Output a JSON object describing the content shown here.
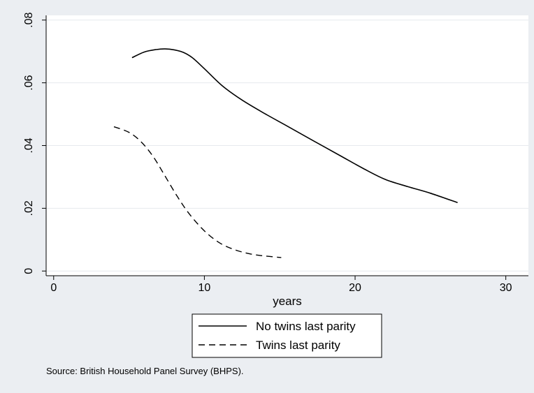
{
  "chart_data": {
    "type": "line",
    "title": "",
    "xlabel": "years",
    "ylabel": "",
    "xlim": [
      -0.5,
      31.5
    ],
    "ylim": [
      -0.0015,
      0.0815
    ],
    "x_ticks": [
      0,
      10,
      20,
      30
    ],
    "x_tick_labels": [
      "0",
      "10",
      "20",
      "30"
    ],
    "y_ticks": [
      0,
      0.02,
      0.04,
      0.06,
      0.08
    ],
    "y_tick_labels": [
      "0",
      ".02",
      ".04",
      ".06",
      ".08"
    ],
    "grid": true,
    "legend_placement": "bottom-center",
    "series": [
      {
        "name": "No twins last parity",
        "style": "solid",
        "color": "#000000",
        "x": [
          5.2,
          6.0,
          6.8,
          7.4,
          8.0,
          8.6,
          9.2,
          10.0,
          11.2,
          12.5,
          14.0,
          15.5,
          17.2,
          19.0,
          20.5,
          22.0,
          23.5,
          25.0,
          26.8
        ],
        "y": [
          0.068,
          0.0698,
          0.0706,
          0.0708,
          0.0705,
          0.0697,
          0.068,
          0.0645,
          0.059,
          0.0545,
          0.0502,
          0.0462,
          0.0416,
          0.0368,
          0.0328,
          0.0292,
          0.0269,
          0.0248,
          0.0218
        ]
      },
      {
        "name": "Twins last parity",
        "style": "dashed",
        "color": "#000000",
        "x": [
          4.0,
          5.0,
          5.8,
          6.6,
          7.4,
          8.2,
          9.0,
          10.0,
          11.0,
          12.0,
          13.0,
          14.0,
          15.1
        ],
        "y": [
          0.046,
          0.0442,
          0.0412,
          0.0365,
          0.0302,
          0.0238,
          0.0182,
          0.0128,
          0.009,
          0.0068,
          0.0055,
          0.0048,
          0.0043
        ]
      }
    ]
  },
  "source_note": "Source: British Household Panel Survey (BHPS).",
  "colors": {
    "outer_background": "#ebeef2",
    "plot_background": "#ffffff",
    "grid": "#e6e9ed",
    "line": "#000000"
  }
}
